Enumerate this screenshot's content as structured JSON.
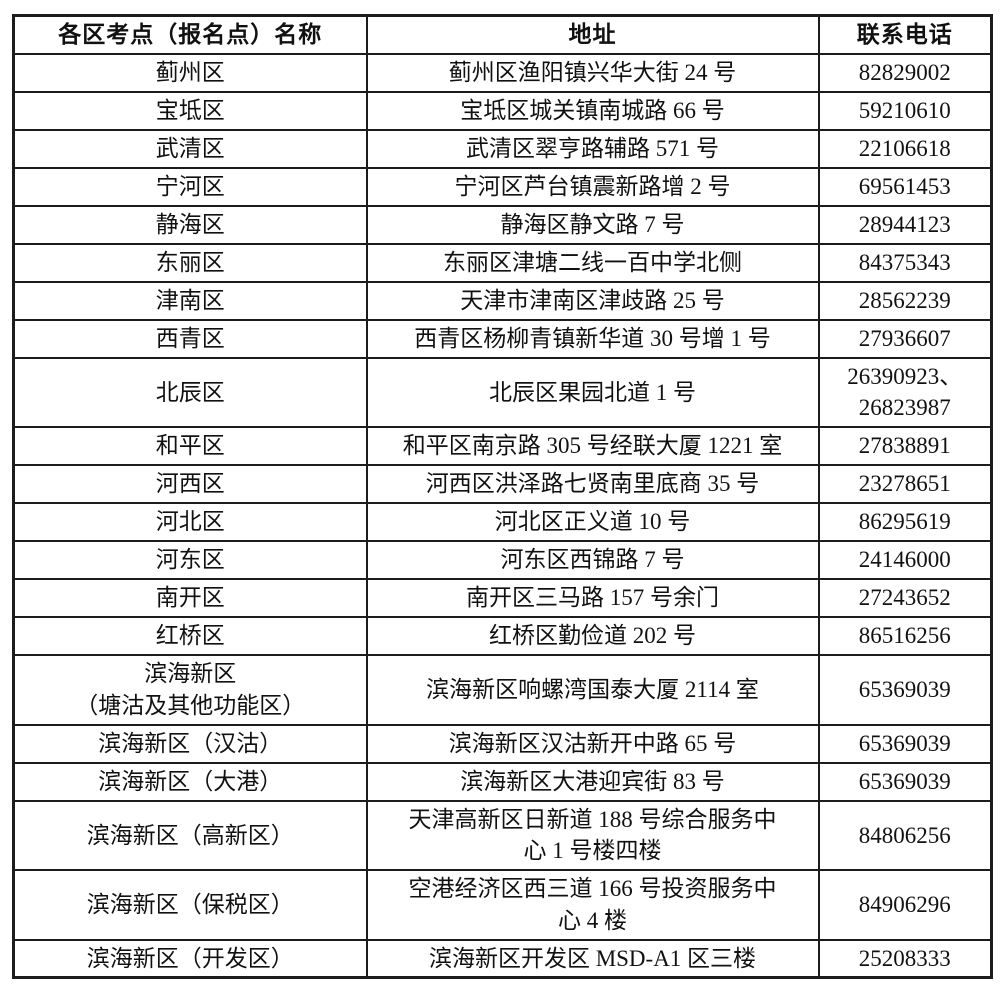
{
  "table": {
    "headers": [
      "各区考点（报名点）名称",
      "地址",
      "联系电话"
    ],
    "rows": [
      {
        "name": "蓟州区",
        "address": "蓟州区渔阳镇兴华大街 24 号",
        "phone": "82829002"
      },
      {
        "name": "宝坻区",
        "address": "宝坻区城关镇南城路 66 号",
        "phone": "59210610"
      },
      {
        "name": "武清区",
        "address": "武清区翠亨路辅路 571 号",
        "phone": "22106618"
      },
      {
        "name": "宁河区",
        "address": "宁河区芦台镇震新路增 2 号",
        "phone": "69561453"
      },
      {
        "name": "静海区",
        "address": "静海区静文路 7 号",
        "phone": "28944123"
      },
      {
        "name": "东丽区",
        "address": "东丽区津塘二线一百中学北侧",
        "phone": "84375343"
      },
      {
        "name": "津南区",
        "address": "天津市津南区津歧路 25 号",
        "phone": "28562239"
      },
      {
        "name": "西青区",
        "address": "西青区杨柳青镇新华道 30 号增 1 号",
        "phone": "27936607"
      },
      {
        "name": "北辰区",
        "address": "北辰区果园北道 1 号",
        "phone": "26390923、\n26823987"
      },
      {
        "name": "和平区",
        "address": "和平区南京路 305 号经联大厦 1221 室",
        "phone": "27838891"
      },
      {
        "name": "河西区",
        "address": "河西区洪泽路七贤南里底商 35 号",
        "phone": "23278651"
      },
      {
        "name": "河北区",
        "address": "河北区正义道 10 号",
        "phone": "86295619"
      },
      {
        "name": "河东区",
        "address": "河东区西锦路 7 号",
        "phone": "24146000"
      },
      {
        "name": "南开区",
        "address": "南开区三马路 157 号余门",
        "phone": "27243652"
      },
      {
        "name": "红桥区",
        "address": "红桥区勤俭道 202 号",
        "phone": "86516256"
      },
      {
        "name": "滨海新区\n（塘沽及其他功能区）",
        "address": "滨海新区响螺湾国泰大厦 2114 室",
        "phone": "65369039"
      },
      {
        "name": "滨海新区（汉沽）",
        "address": "滨海新区汉沽新开中路 65 号",
        "phone": "65369039"
      },
      {
        "name": "滨海新区（大港）",
        "address": "滨海新区大港迎宾街 83 号",
        "phone": "65369039"
      },
      {
        "name": "滨海新区（高新区）",
        "address": "天津高新区日新道 188 号综合服务中\n心 1 号楼四楼",
        "phone": "84806256"
      },
      {
        "name": "滨海新区（保税区）",
        "address": "空港经济区西三道 166 号投资服务中\n心 4 楼",
        "phone": "84906296"
      },
      {
        "name": "滨海新区（开发区）",
        "address": "滨海新区开发区 MSD-A1 区三楼",
        "phone": "25208333"
      }
    ]
  }
}
